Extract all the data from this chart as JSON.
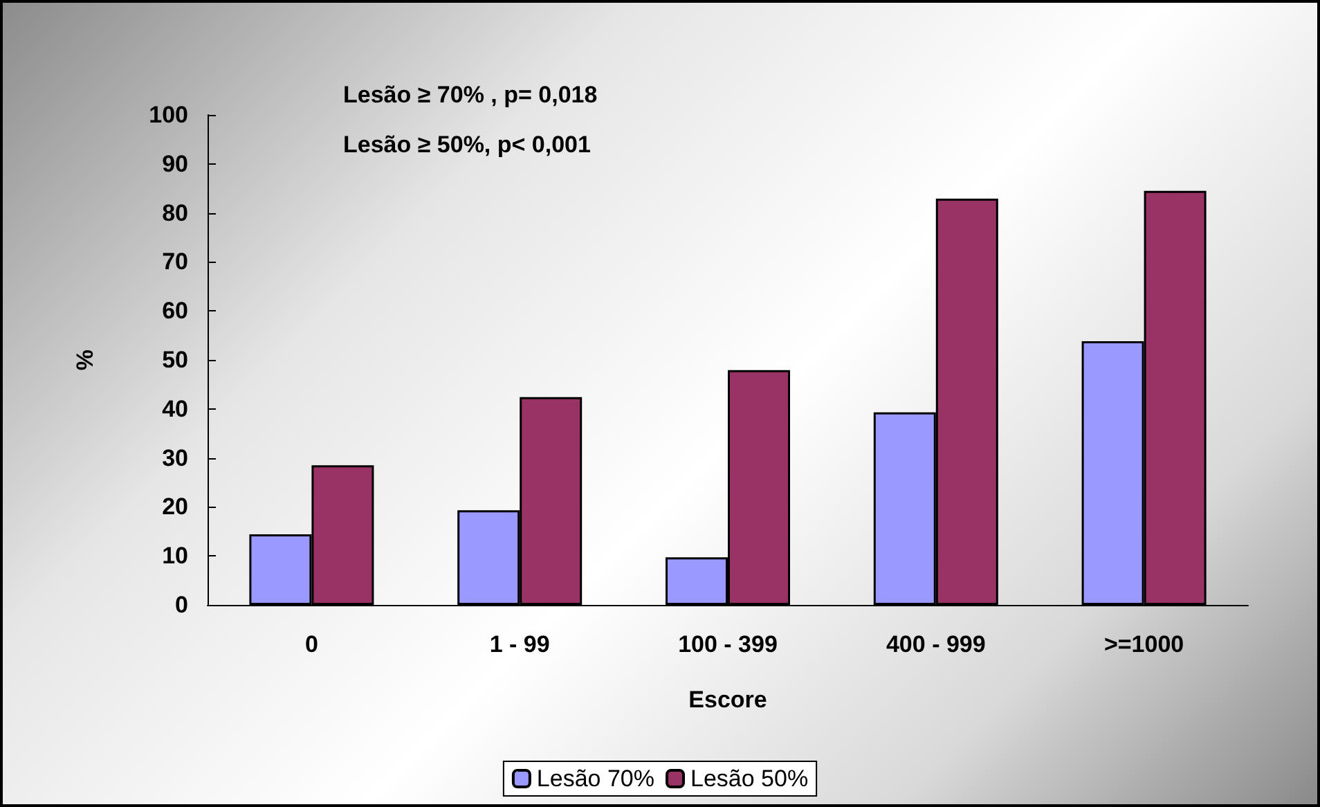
{
  "chart_data": {
    "type": "bar",
    "xlabel": "Escore",
    "ylabel": "%",
    "categories": [
      "0",
      "1 - 99",
      "100 - 399",
      "400 - 999",
      ">=1000"
    ],
    "series": [
      {
        "name": "Lesão 70%",
        "color": "#9999ff",
        "values": [
          14.4,
          19.3,
          9.7,
          39.3,
          53.8
        ]
      },
      {
        "name": "Lesão 50%",
        "color": "#993366",
        "values": [
          28.5,
          42.4,
          47.9,
          82.9,
          84.5
        ]
      }
    ],
    "ylim": [
      0,
      100
    ],
    "yticks": [
      0,
      10,
      20,
      30,
      40,
      50,
      60,
      70,
      80,
      90,
      100
    ],
    "annotations": [
      "Lesão ≥ 70% , p= 0,018",
      "Lesão ≥ 50%, p< 0,001"
    ],
    "grid": false,
    "legend": "bottom"
  }
}
